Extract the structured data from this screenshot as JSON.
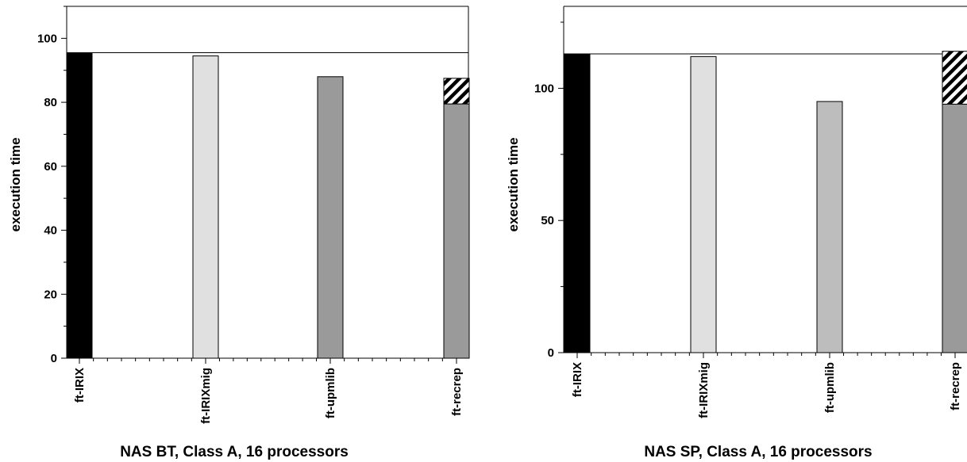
{
  "chart_data": [
    {
      "type": "bar",
      "title": "NAS BT, Class A, 16 processors",
      "ylabel": "execution time",
      "xlabel": "",
      "categories": [
        "ft-IRIX",
        "ft-IRIXmig",
        "ft-upmlib",
        "ft-recrep"
      ],
      "values": [
        95.5,
        94.5,
        88,
        87.5
      ],
      "hatched_overhead": [
        0,
        0,
        0,
        8
      ],
      "base_values": [
        95.5,
        94.5,
        88,
        79.5
      ],
      "reference_line": 95.5,
      "ylim": [
        0,
        110
      ],
      "yticks": [
        0,
        20,
        40,
        60,
        80,
        100
      ],
      "grid": false,
      "colors": [
        "#000000",
        "#e0e0e0",
        "#9a9a9a",
        "#9a9a9a"
      ]
    },
    {
      "type": "bar",
      "title": "NAS SP, Class A, 16 processors",
      "ylabel": "execution time",
      "xlabel": "",
      "categories": [
        "ft-IRIX",
        "ft-IRIXmig",
        "ft-upmlib",
        "ft-recrep"
      ],
      "values": [
        113,
        112,
        95,
        114
      ],
      "hatched_overhead": [
        0,
        0,
        0,
        20
      ],
      "base_values": [
        113,
        112,
        95,
        94
      ],
      "reference_line": 113,
      "ylim": [
        0,
        131
      ],
      "yticks": [
        0,
        50,
        100
      ],
      "grid": false,
      "colors": [
        "#000000",
        "#e0e0e0",
        "#bdbdbd",
        "#9a9a9a"
      ]
    }
  ]
}
